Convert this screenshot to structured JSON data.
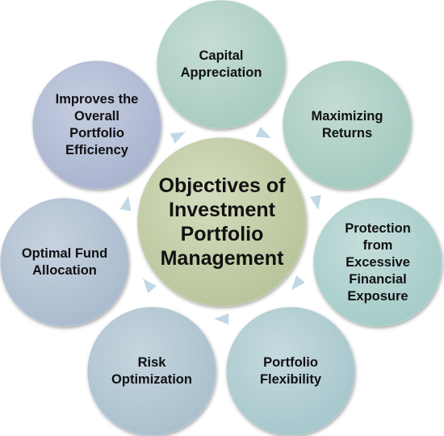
{
  "center": {
    "lines": [
      "Objectives of",
      "Investment",
      "Portfolio",
      "Management"
    ]
  },
  "nodes": [
    {
      "lines": [
        "Capital",
        "Appreciation"
      ]
    },
    {
      "lines": [
        "Maximizing",
        "Returns"
      ]
    },
    {
      "lines": [
        "Protection",
        "from",
        "Excessive",
        "Financial",
        "Exposure"
      ]
    },
    {
      "lines": [
        "Portfolio",
        "Flexibility"
      ]
    },
    {
      "lines": [
        "Risk",
        "Optimization"
      ]
    },
    {
      "lines": [
        "Optimal Fund",
        "Allocation"
      ]
    },
    {
      "lines": [
        "Improves the",
        "Overall",
        "Portfolio",
        "Efficiency"
      ]
    }
  ],
  "colors": {
    "center_fill": "#b7c49a",
    "center_fill_light": "#d4dcbd",
    "node_fills": [
      "#a7cbbf",
      "#a3c9bf",
      "#a4cbc7",
      "#a5c6cc",
      "#a8bfcc",
      "#a9bacd",
      "#a8b3cf"
    ],
    "stroke": "#ffffff",
    "arrow": "#c2d8e6"
  }
}
